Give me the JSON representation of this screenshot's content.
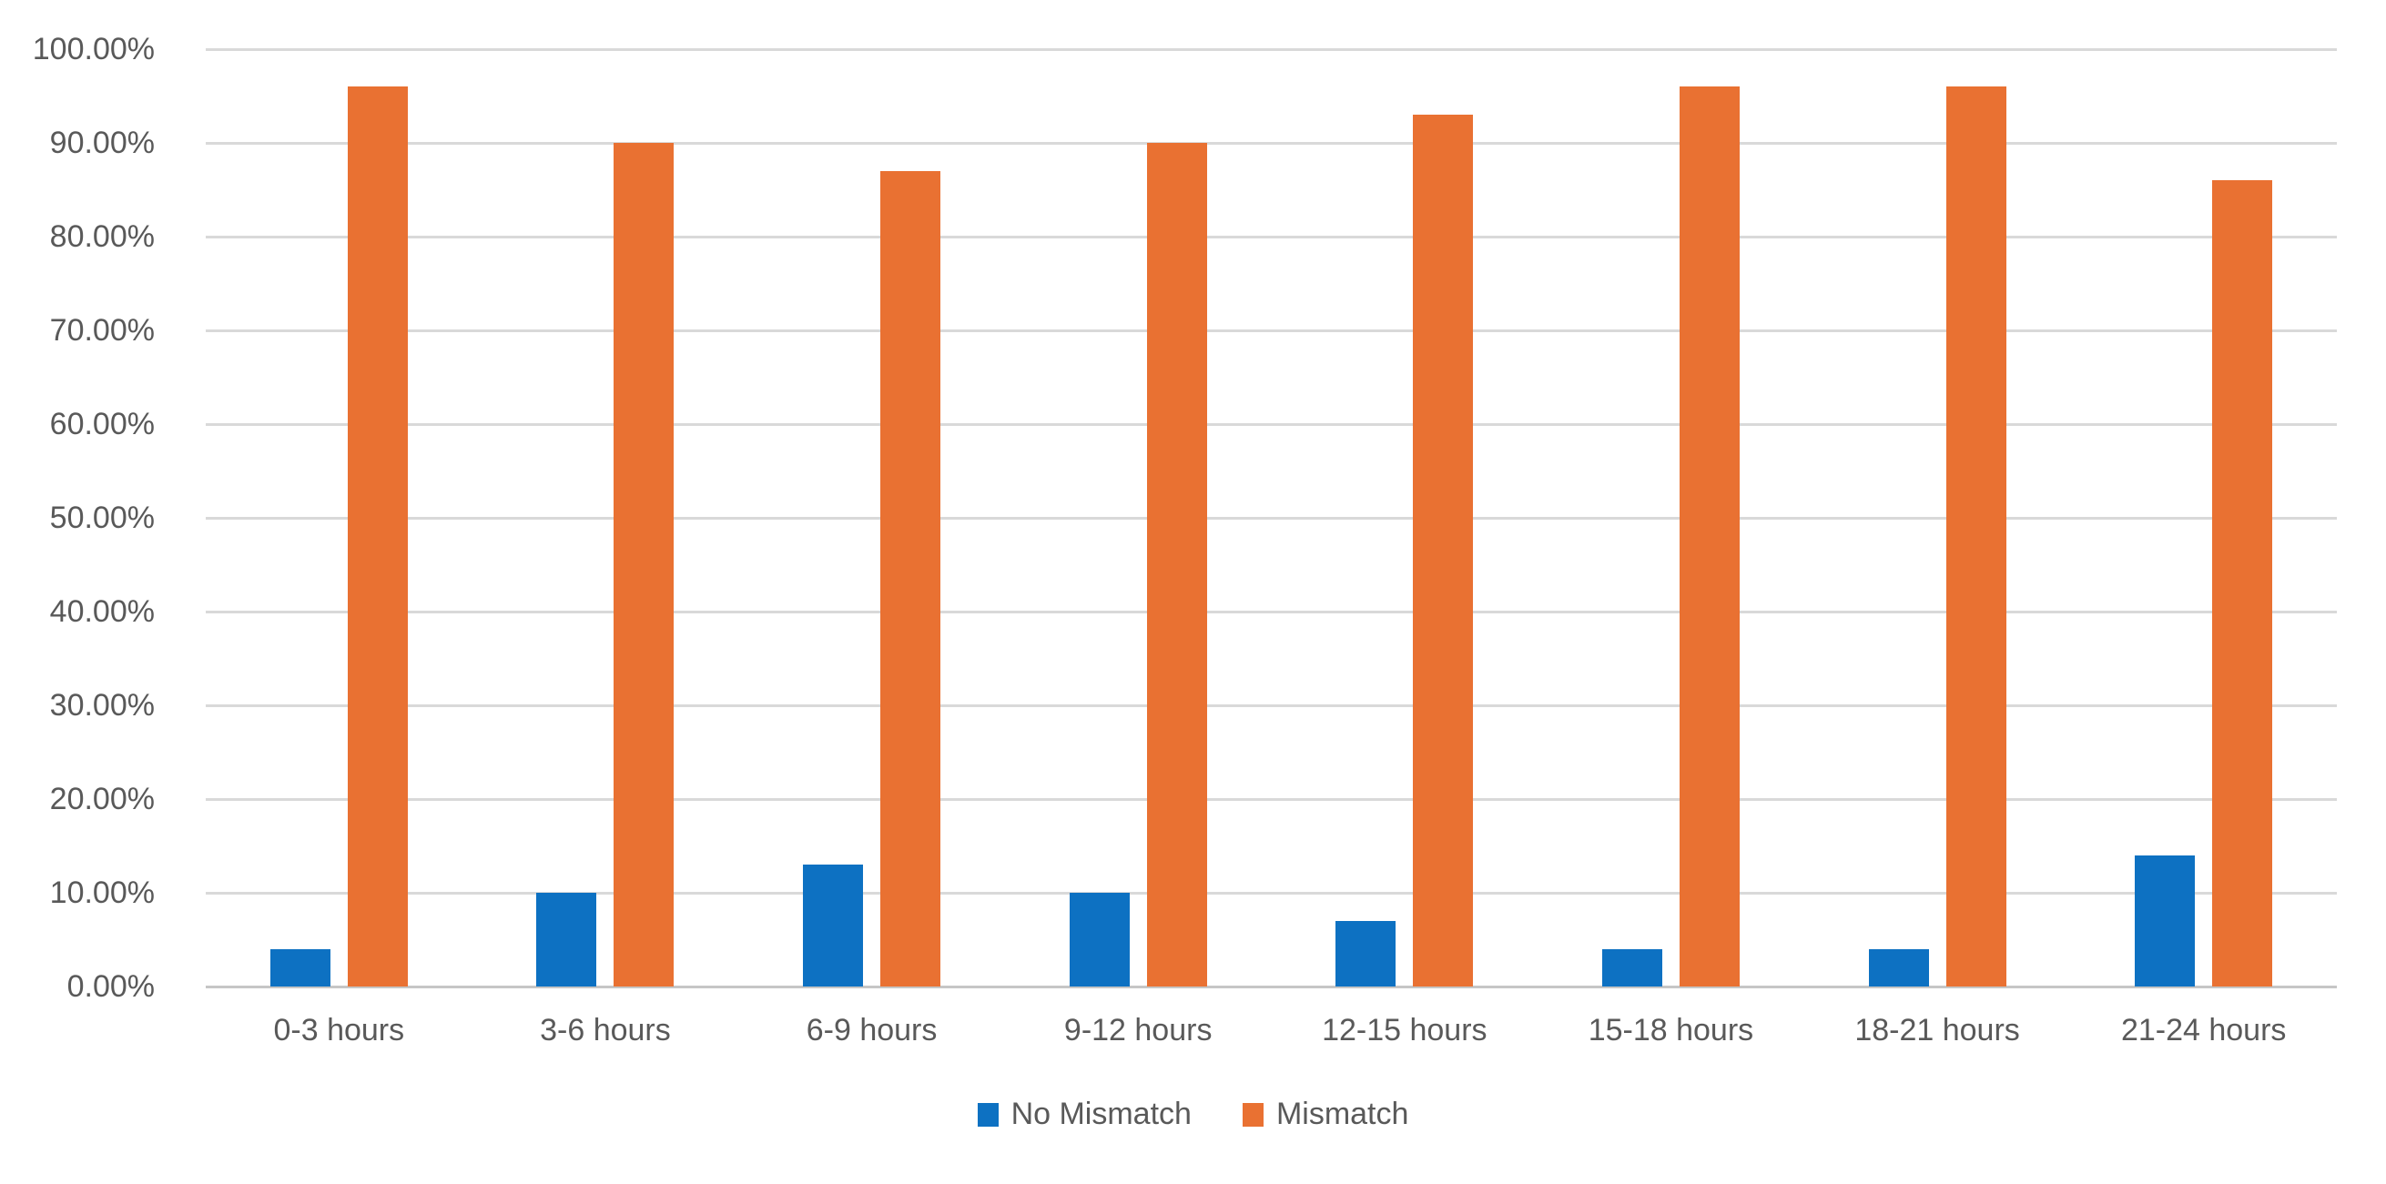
{
  "chart_data": {
    "type": "bar",
    "title": "",
    "xlabel": "",
    "ylabel": "",
    "categories": [
      "0-3 hours",
      "3-6 hours",
      "6-9 hours",
      "9-12 hours",
      "12-15 hours",
      "15-18 hours",
      "18-21 hours",
      "21-24 hours"
    ],
    "series": [
      {
        "name": "No Mismatch",
        "color": "#0d71c2",
        "values": [
          4,
          10,
          13,
          10,
          7,
          4,
          4,
          14
        ]
      },
      {
        "name": "Mismatch",
        "color": "#e97132",
        "values": [
          96,
          90,
          87,
          90,
          93,
          96,
          96,
          86
        ]
      }
    ],
    "ylim": [
      0,
      100
    ],
    "y_tick_values": [
      0,
      10,
      20,
      30,
      40,
      50,
      60,
      70,
      80,
      90,
      100
    ],
    "y_tick_labels": [
      "0.00%",
      "10.00%",
      "20.00%",
      "30.00%",
      "40.00%",
      "50.00%",
      "60.00%",
      "70.00%",
      "80.00%",
      "90.00%",
      "100.00%"
    ],
    "grid": "horizontal",
    "legend_position": "bottom-center",
    "colors": {
      "text": "#595959",
      "gridline": "#d9d9d9",
      "background": "#ffffff"
    }
  }
}
